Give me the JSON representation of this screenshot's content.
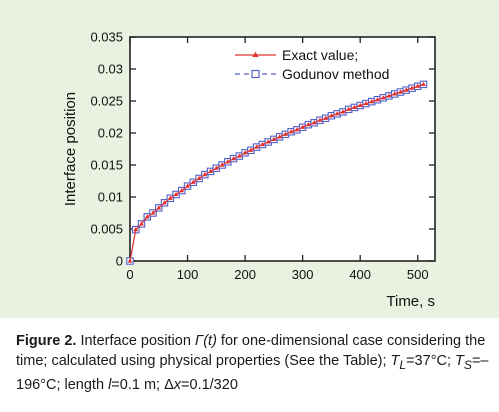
{
  "chart_data": {
    "type": "line",
    "title": "",
    "xlabel": "Time, s",
    "ylabel": "Interface position",
    "xlim": [
      0,
      530
    ],
    "ylim": [
      0,
      0.035
    ],
    "x_ticks": [
      "0",
      "100",
      "200",
      "300",
      "400",
      "500"
    ],
    "y_ticks": [
      "0",
      "0.005",
      "0.01",
      "0.015",
      "0.02",
      "0.025",
      "0.03",
      "0.035"
    ],
    "grid": false,
    "legend_position": "top-right",
    "series": [
      {
        "name": "Exact value;",
        "color": "#e03030",
        "style": "solid",
        "marker": "triangle",
        "x": [
          0,
          10,
          20,
          30,
          40,
          50,
          60,
          70,
          80,
          90,
          100,
          110,
          120,
          130,
          140,
          150,
          160,
          170,
          180,
          190,
          200,
          210,
          220,
          230,
          240,
          250,
          260,
          270,
          280,
          290,
          300,
          310,
          320,
          330,
          340,
          350,
          360,
          370,
          380,
          390,
          400,
          410,
          420,
          430,
          440,
          450,
          460,
          470,
          480,
          490,
          500,
          510
        ],
        "y": [
          0,
          0.0049,
          0.0058,
          0.0069,
          0.0075,
          0.0083,
          0.0091,
          0.0098,
          0.0104,
          0.011,
          0.0117,
          0.0123,
          0.0129,
          0.0135,
          0.014,
          0.0145,
          0.015,
          0.0155,
          0.016,
          0.0164,
          0.0169,
          0.0173,
          0.0178,
          0.0182,
          0.0186,
          0.019,
          0.0194,
          0.0198,
          0.0202,
          0.0205,
          0.0209,
          0.0213,
          0.0216,
          0.022,
          0.0223,
          0.0227,
          0.023,
          0.0233,
          0.0237,
          0.024,
          0.0243,
          0.0246,
          0.0249,
          0.0252,
          0.0255,
          0.0258,
          0.0261,
          0.0264,
          0.0267,
          0.027,
          0.0273,
          0.0276
        ]
      },
      {
        "name": "Godunov method",
        "color": "#5060c8",
        "style": "dashed",
        "marker": "square",
        "x": [
          0,
          10,
          20,
          30,
          40,
          50,
          60,
          70,
          80,
          90,
          100,
          110,
          120,
          130,
          140,
          150,
          160,
          170,
          180,
          190,
          200,
          210,
          220,
          230,
          240,
          250,
          260,
          270,
          280,
          290,
          300,
          310,
          320,
          330,
          340,
          350,
          360,
          370,
          380,
          390,
          400,
          410,
          420,
          430,
          440,
          450,
          460,
          470,
          480,
          490,
          500,
          510
        ],
        "y": [
          0,
          0.0049,
          0.0058,
          0.0069,
          0.0075,
          0.0083,
          0.0091,
          0.0098,
          0.0104,
          0.011,
          0.0117,
          0.0123,
          0.0129,
          0.0135,
          0.014,
          0.0145,
          0.015,
          0.0155,
          0.016,
          0.0164,
          0.0169,
          0.0173,
          0.0178,
          0.0182,
          0.0186,
          0.019,
          0.0194,
          0.0198,
          0.0202,
          0.0205,
          0.0209,
          0.0213,
          0.0216,
          0.022,
          0.0223,
          0.0227,
          0.023,
          0.0233,
          0.0237,
          0.024,
          0.0243,
          0.0246,
          0.0249,
          0.0252,
          0.0255,
          0.0258,
          0.0261,
          0.0264,
          0.0267,
          0.027,
          0.0273,
          0.0276
        ]
      }
    ]
  },
  "caption": {
    "label": "Figure 2.",
    "text_1": " Interface position ",
    "gamma_t": "Γ(t)",
    "text_2": " for one-dimensional case considering the time; calculated using physical properties (See the Table); ",
    "tl_sym": "T",
    "tl_sub": "L",
    "tl_val": "=37°C; ",
    "ts_sym": "T",
    "ts_sub": "S",
    "ts_val": "=–196°C; length ",
    "l_sym": "l",
    "l_val": "=0.1 m; Δ",
    "dx_sym": "x",
    "dx_val": "=0.1/320"
  }
}
